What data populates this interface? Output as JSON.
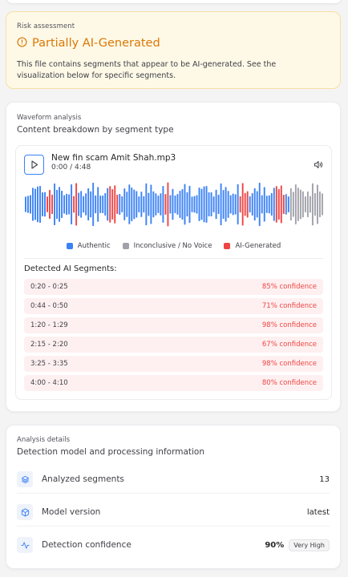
{
  "risk": {
    "eyebrow": "Risk assessment",
    "title": "Partially AI-Generated",
    "description": "This file contains segments that appear to be AI-generated. See the visualization below for specific segments.",
    "icon": "alert-circle-icon",
    "accent_color": "#d97706"
  },
  "waveform_card": {
    "eyebrow": "Waveform analysis",
    "subtitle": "Content breakdown by segment type",
    "player": {
      "file_name": "New fin scam Amit Shah.mp3",
      "time": "0:00 / 4:48",
      "play_icon": "play-icon",
      "volume_icon": "volume-icon"
    },
    "colors": {
      "authentic": "#3b82f6",
      "inconclusive": "#a1a1aa",
      "ai": "#ef4444"
    },
    "legend": [
      {
        "label": "Authentic",
        "color": "#3b82f6"
      },
      {
        "label": "Inconclusive / No Voice",
        "color": "#a1a1aa"
      },
      {
        "label": "AI-Generated",
        "color": "#ef4444"
      }
    ],
    "segments_title": "Detected AI Segments:",
    "segments": [
      {
        "range": "0:20 - 0:25",
        "confidence": "85% confidence"
      },
      {
        "range": "0:44 - 0:50",
        "confidence": "71% confidence"
      },
      {
        "range": "1:20 - 1:29",
        "confidence": "98% confidence"
      },
      {
        "range": "2:15 - 2:20",
        "confidence": "67% confidence"
      },
      {
        "range": "3:25 - 3:35",
        "confidence": "98% confidence"
      },
      {
        "range": "4:00 - 4:10",
        "confidence": "80% confidence"
      }
    ]
  },
  "details": {
    "eyebrow": "Analysis details",
    "subtitle": "Detection model and processing information",
    "rows": [
      {
        "label": "Analyzed segments",
        "value": "13",
        "icon": "layers-icon"
      },
      {
        "label": "Model version",
        "value": "latest",
        "icon": "cube-icon"
      },
      {
        "label": "Detection confidence",
        "value": "90%",
        "badge": "Very High",
        "icon": "activity-icon"
      }
    ]
  }
}
